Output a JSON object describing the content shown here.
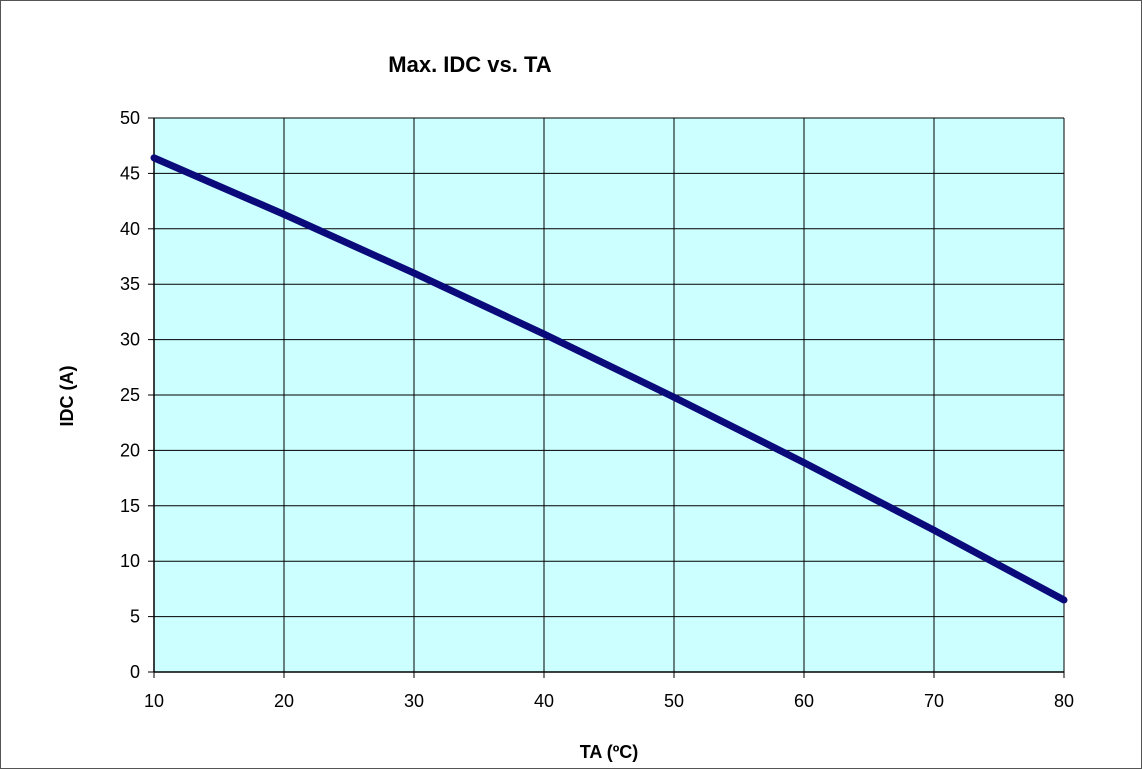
{
  "chart_data": {
    "type": "line",
    "title": "Max. IDC vs. TA",
    "xlabel": "TA (ºC)",
    "ylabel": "IDC (A)",
    "xlim": [
      10,
      80
    ],
    "ylim": [
      0,
      50
    ],
    "x_ticks": [
      10,
      20,
      30,
      40,
      50,
      60,
      70,
      80
    ],
    "y_ticks": [
      0,
      5,
      10,
      15,
      20,
      25,
      30,
      35,
      40,
      45,
      50
    ],
    "grid": true,
    "legend": "none",
    "plot_background": "#ccffff",
    "series": [
      {
        "color": "#0a0a7a",
        "x": [
          10,
          20,
          30,
          40,
          50,
          60,
          70,
          80
        ],
        "y": [
          46.4,
          41.3,
          36.0,
          30.5,
          24.8,
          18.9,
          12.8,
          6.5
        ]
      }
    ]
  }
}
